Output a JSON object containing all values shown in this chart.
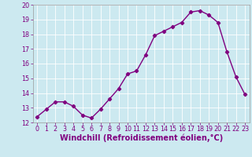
{
  "x": [
    0,
    1,
    2,
    3,
    4,
    5,
    6,
    7,
    8,
    9,
    10,
    11,
    12,
    13,
    14,
    15,
    16,
    17,
    18,
    19,
    20,
    21,
    22,
    23
  ],
  "y": [
    12.4,
    12.9,
    13.4,
    13.4,
    13.1,
    12.5,
    12.3,
    12.9,
    13.6,
    14.3,
    15.3,
    15.5,
    16.6,
    17.9,
    18.2,
    18.5,
    18.8,
    19.5,
    19.6,
    19.3,
    18.8,
    16.8,
    15.1,
    13.9
  ],
  "line_color": "#800080",
  "marker": "D",
  "marker_size": 2.2,
  "bg_color": "#cce9f0",
  "grid_color": "#ffffff",
  "xlabel": "Windchill (Refroidissement éolien,°C)",
  "xlabel_color": "#800080",
  "ylim": [
    12,
    20
  ],
  "xlim": [
    -0.5,
    23.5
  ],
  "yticks": [
    12,
    13,
    14,
    15,
    16,
    17,
    18,
    19,
    20
  ],
  "xticks": [
    0,
    1,
    2,
    3,
    4,
    5,
    6,
    7,
    8,
    9,
    10,
    11,
    12,
    13,
    14,
    15,
    16,
    17,
    18,
    19,
    20,
    21,
    22,
    23
  ],
  "tick_color": "#800080",
  "tick_fontsize": 5.8,
  "xlabel_fontsize": 7.0,
  "spine_color": "#999999",
  "line_width": 1.0
}
